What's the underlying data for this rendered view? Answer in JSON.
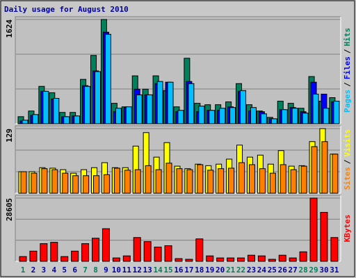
{
  "chart_data": [
    {
      "type": "bar",
      "title": "Daily usage for August 2010",
      "ylim": [
        0,
        1624
      ],
      "yticks": [
        1624
      ],
      "legend_separator": "/",
      "series": [
        {
          "name": "Hits",
          "color": "#00805C",
          "values": [
            110,
            198,
            582,
            483,
            176,
            176,
            691,
            1064,
            1624,
            318,
            263,
            746,
            538,
            746,
            516,
            263,
            1020,
            318,
            296,
            296,
            340,
            625,
            296,
            198,
            99,
            351,
            318,
            241,
            735,
            351,
            406
          ]
        },
        {
          "name": "Files",
          "color": "#0000FF",
          "values": [
            44,
            132,
            505,
            384,
            110,
            121,
            593,
            823,
            1426,
            187,
            252,
            538,
            450,
            625,
            647,
            187,
            658,
            187,
            208,
            208,
            263,
            505,
            198,
            187,
            77,
            219,
            252,
            187,
            647,
            461,
            340
          ]
        },
        {
          "name": "Pages",
          "color": "#00C0FF",
          "values": [
            55,
            143,
            505,
            395,
            110,
            121,
            582,
            812,
            1393,
            241,
            263,
            450,
            450,
            658,
            647,
            208,
            625,
            274,
            208,
            241,
            252,
            516,
            252,
            154,
            77,
            219,
            241,
            165,
            461,
            241,
            351
          ]
        }
      ]
    },
    {
      "type": "bar",
      "ylim": [
        0,
        129
      ],
      "yticks": [
        129
      ],
      "legend_separator": "/",
      "series": [
        {
          "name": "Visits",
          "color": "#FFFF00",
          "values": [
            43,
            43,
            51,
            50,
            47,
            40,
            47,
            51,
            61,
            51,
            51,
            94,
            121,
            72,
            101,
            54,
            49,
            58,
            55,
            58,
            68,
            96,
            72,
            76,
            58,
            85,
            54,
            55,
            103,
            129,
            78
          ]
        },
        {
          "name": "Sites",
          "color": "#FF8000",
          "values": [
            43,
            40,
            49,
            47,
            40,
            35,
            35,
            35,
            37,
            50,
            46,
            47,
            55,
            47,
            60,
            49,
            47,
            57,
            46,
            49,
            50,
            61,
            57,
            49,
            40,
            57,
            47,
            54,
            93,
            103,
            78
          ]
        }
      ]
    },
    {
      "type": "bar",
      "ylim": [
        0,
        28605
      ],
      "yticks": [
        28605
      ],
      "categories": [
        "1",
        "2",
        "3",
        "4",
        "5",
        "6",
        "7",
        "8",
        "9",
        "10",
        "11",
        "12",
        "13",
        "14",
        "15",
        "16",
        "17",
        "18",
        "19",
        "20",
        "21",
        "22",
        "23",
        "24",
        "25",
        "26",
        "27",
        "28",
        "29",
        "30",
        "31"
      ],
      "label_colors": [
        "#00805C",
        "#0000A0",
        "#0000A0",
        "#0000A0",
        "#0000A0",
        "#0000A0",
        "#00805C",
        "#00805C",
        "#0000A0",
        "#0000A0",
        "#0000A0",
        "#0000A0",
        "#0000A0",
        "#00805C",
        "#00805C",
        "#0000A0",
        "#0000A0",
        "#0000A0",
        "#0000A0",
        "#0000A0",
        "#00805C",
        "#00805C",
        "#0000A0",
        "#0000A0",
        "#0000A0",
        "#0000A0",
        "#0000A0",
        "#00805C",
        "#00805C",
        "#0000A0",
        "#0000A0"
      ],
      "series": [
        {
          "name": "KBytes",
          "color": "#FF0000",
          "values": [
            2153,
            4614,
            7997,
            8612,
            2153,
            4614,
            7997,
            10458,
            14764,
            1538,
            2461,
            10765,
            8920,
            6459,
            7074,
            1230,
            923,
            10150,
            2461,
            1538,
            1538,
            1538,
            2768,
            2461,
            923,
            2768,
            1538,
            4306,
            28605,
            22146,
            10765
          ]
        }
      ]
    }
  ]
}
